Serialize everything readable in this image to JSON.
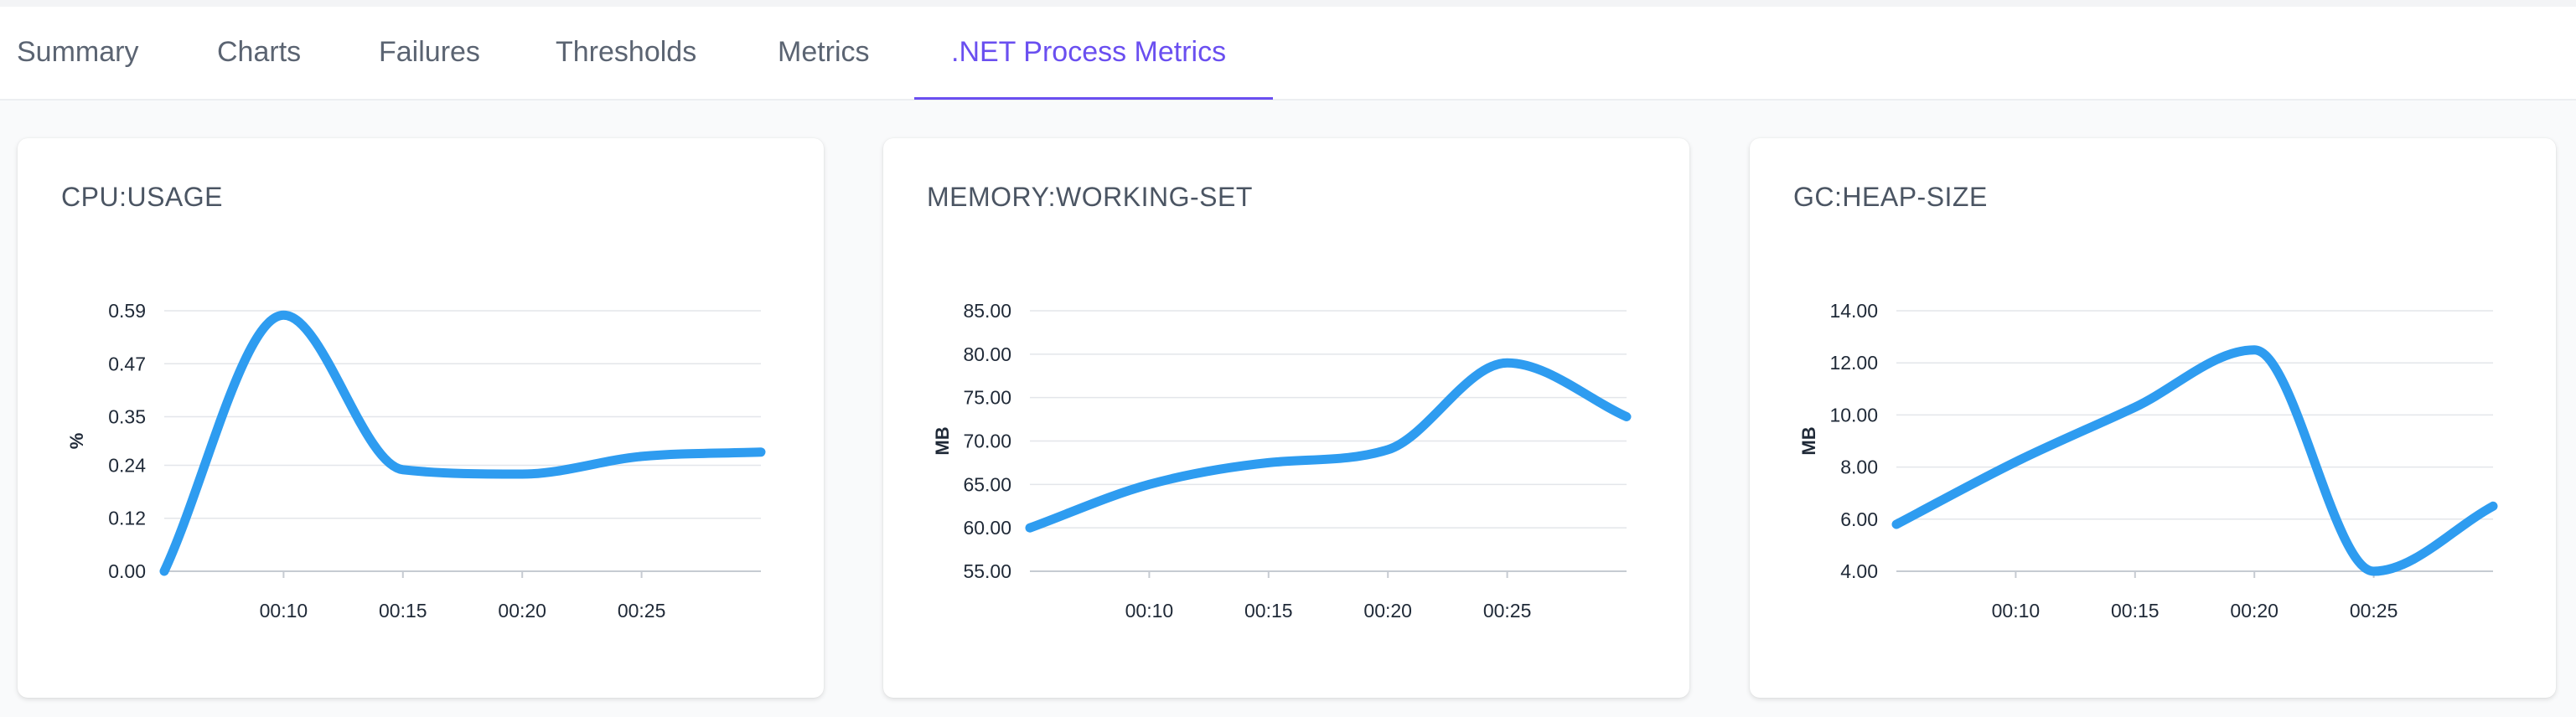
{
  "tabs": [
    {
      "label": "Summary"
    },
    {
      "label": "Charts"
    },
    {
      "label": "Failures"
    },
    {
      "label": "Thresholds"
    },
    {
      "label": "Metrics"
    },
    {
      "label": ".NET Process Metrics",
      "active": true
    }
  ],
  "colors": {
    "accent": "#6a4ff0",
    "series": "#2e9cf0"
  },
  "chart_data": [
    {
      "type": "line",
      "title": "CPU:USAGE",
      "ylabel": "%",
      "xlabel": "",
      "x_ticks": [
        "00:10",
        "00:15",
        "00:20",
        "00:25"
      ],
      "y_ticks": [
        "0.00",
        "0.12",
        "0.24",
        "0.35",
        "0.47",
        "0.59"
      ],
      "ylim": [
        0,
        0.59
      ],
      "xlim": [
        "00:05",
        "00:30"
      ],
      "grid": true,
      "series": [
        {
          "x": [
            5,
            10,
            15,
            20,
            25,
            30
          ],
          "y": [
            0.0,
            0.58,
            0.23,
            0.22,
            0.26,
            0.27
          ]
        }
      ]
    },
    {
      "type": "line",
      "title": "MEMORY:WORKING-SET",
      "ylabel": "MB",
      "xlabel": "",
      "x_ticks": [
        "00:10",
        "00:15",
        "00:20",
        "00:25"
      ],
      "y_ticks": [
        "55.00",
        "60.00",
        "65.00",
        "70.00",
        "75.00",
        "80.00",
        "85.00"
      ],
      "ylim": [
        55,
        85
      ],
      "xlim": [
        "00:05",
        "00:30"
      ],
      "grid": true,
      "series": [
        {
          "x": [
            5,
            10,
            15,
            20,
            25,
            30
          ],
          "y": [
            60.0,
            65.0,
            67.5,
            69.0,
            79.0,
            72.8
          ]
        }
      ]
    },
    {
      "type": "line",
      "title": "GC:HEAP-SIZE",
      "ylabel": "MB",
      "xlabel": "",
      "x_ticks": [
        "00:10",
        "00:15",
        "00:20",
        "00:25"
      ],
      "y_ticks": [
        "4.00",
        "6.00",
        "8.00",
        "10.00",
        "12.00",
        "14.00"
      ],
      "ylim": [
        4,
        14
      ],
      "xlim": [
        "00:05",
        "00:30"
      ],
      "grid": true,
      "series": [
        {
          "x": [
            5,
            10,
            15,
            20,
            25,
            30
          ],
          "y": [
            5.8,
            8.2,
            10.3,
            12.5,
            4.0,
            6.5
          ]
        }
      ]
    }
  ]
}
